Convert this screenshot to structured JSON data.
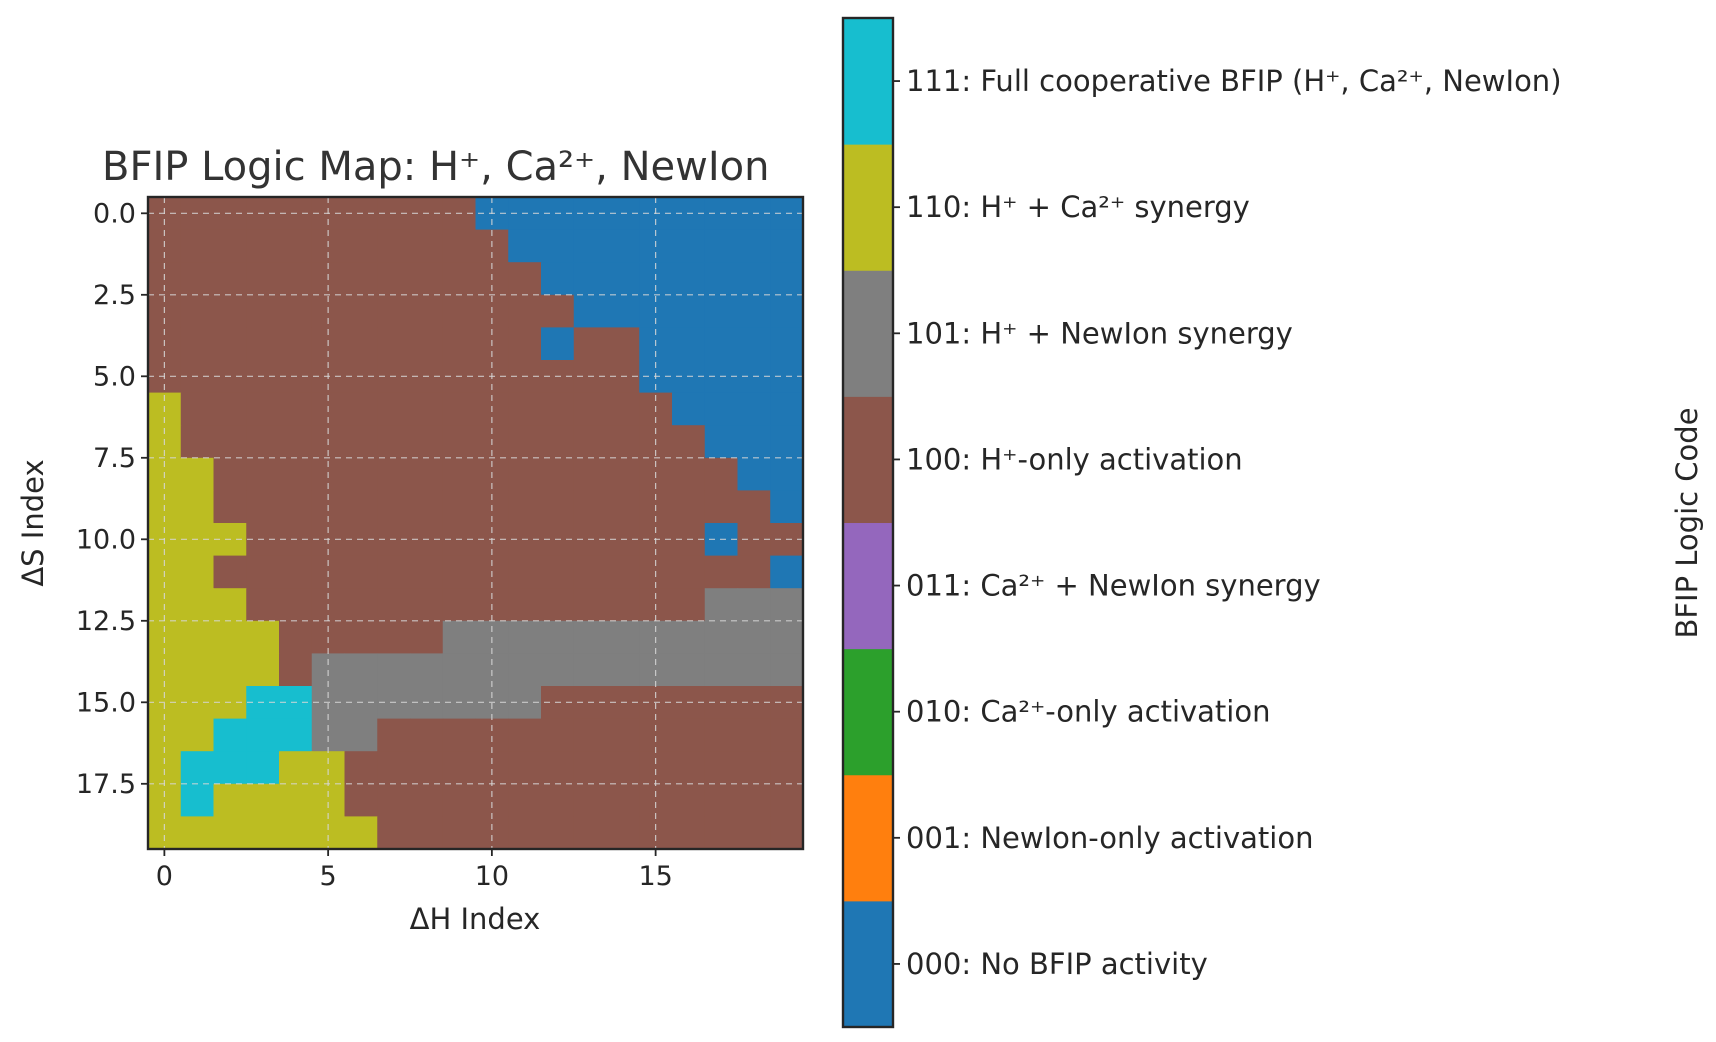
{
  "chart_data": {
    "type": "heatmap",
    "title": "BFIP Logic Map: H⁺, Ca²⁺, NewIon",
    "xlabel": "ΔH Index",
    "ylabel": "ΔS Index",
    "colorbar_label": "BFIP Logic Code",
    "x_ticks": [
      "0",
      "5",
      "10",
      "15"
    ],
    "y_ticks": [
      "0.0",
      "2.5",
      "5.0",
      "7.5",
      "10.0",
      "12.5",
      "15.0",
      "17.5"
    ],
    "grid": true,
    "codes": [
      {
        "code": "000",
        "label": "000: No BFIP activity",
        "color": "#1f77b4"
      },
      {
        "code": "001",
        "label": "001: NewIon-only activation",
        "color": "#ff7f0e"
      },
      {
        "code": "010",
        "label": "010: Ca²⁺-only activation",
        "color": "#2ca02c"
      },
      {
        "code": "011",
        "label": "011: Ca²⁺ + NewIon synergy",
        "color": "#9467bd"
      },
      {
        "code": "100",
        "label": "100: H⁺-only activation",
        "color": "#8c564b"
      },
      {
        "code": "101",
        "label": "101: H⁺ + NewIon synergy",
        "color": "#7f7f7f"
      },
      {
        "code": "110",
        "label": "110: H⁺ + Ca²⁺ synergy",
        "color": "#bcbd22"
      },
      {
        "code": "111",
        "label": "111: Full cooperative BFIP (H⁺, Ca²⁺, NewIon)",
        "color": "#17becf"
      }
    ],
    "grid_rows": [
      [
        "100",
        "100",
        "100",
        "100",
        "100",
        "100",
        "100",
        "100",
        "100",
        "100",
        "000",
        "000",
        "000",
        "000",
        "000",
        "000",
        "000",
        "000",
        "000",
        "000"
      ],
      [
        "100",
        "100",
        "100",
        "100",
        "100",
        "100",
        "100",
        "100",
        "100",
        "100",
        "100",
        "000",
        "000",
        "000",
        "000",
        "000",
        "000",
        "000",
        "000",
        "000"
      ],
      [
        "100",
        "100",
        "100",
        "100",
        "100",
        "100",
        "100",
        "100",
        "100",
        "100",
        "100",
        "100",
        "000",
        "000",
        "000",
        "000",
        "000",
        "000",
        "000",
        "000"
      ],
      [
        "100",
        "100",
        "100",
        "100",
        "100",
        "100",
        "100",
        "100",
        "100",
        "100",
        "100",
        "100",
        "100",
        "000",
        "000",
        "000",
        "000",
        "000",
        "000",
        "000"
      ],
      [
        "100",
        "100",
        "100",
        "100",
        "100",
        "100",
        "100",
        "100",
        "100",
        "100",
        "100",
        "100",
        "000",
        "100",
        "100",
        "000",
        "000",
        "000",
        "000",
        "000"
      ],
      [
        "100",
        "100",
        "100",
        "100",
        "100",
        "100",
        "100",
        "100",
        "100",
        "100",
        "100",
        "100",
        "100",
        "100",
        "100",
        "000",
        "000",
        "000",
        "000",
        "000"
      ],
      [
        "110",
        "100",
        "100",
        "100",
        "100",
        "100",
        "100",
        "100",
        "100",
        "100",
        "100",
        "100",
        "100",
        "100",
        "100",
        "100",
        "000",
        "000",
        "000",
        "000"
      ],
      [
        "110",
        "100",
        "100",
        "100",
        "100",
        "100",
        "100",
        "100",
        "100",
        "100",
        "100",
        "100",
        "100",
        "100",
        "100",
        "100",
        "100",
        "000",
        "000",
        "000"
      ],
      [
        "110",
        "110",
        "100",
        "100",
        "100",
        "100",
        "100",
        "100",
        "100",
        "100",
        "100",
        "100",
        "100",
        "100",
        "100",
        "100",
        "100",
        "100",
        "000",
        "000"
      ],
      [
        "110",
        "110",
        "100",
        "100",
        "100",
        "100",
        "100",
        "100",
        "100",
        "100",
        "100",
        "100",
        "100",
        "100",
        "100",
        "100",
        "100",
        "100",
        "100",
        "000"
      ],
      [
        "110",
        "110",
        "110",
        "100",
        "100",
        "100",
        "100",
        "100",
        "100",
        "100",
        "100",
        "100",
        "100",
        "100",
        "100",
        "100",
        "100",
        "000",
        "100",
        "100"
      ],
      [
        "110",
        "110",
        "100",
        "100",
        "100",
        "100",
        "100",
        "100",
        "100",
        "100",
        "100",
        "100",
        "100",
        "100",
        "100",
        "100",
        "100",
        "100",
        "100",
        "000"
      ],
      [
        "110",
        "110",
        "110",
        "100",
        "100",
        "100",
        "100",
        "100",
        "100",
        "100",
        "100",
        "100",
        "100",
        "100",
        "100",
        "100",
        "100",
        "101",
        "101",
        "101"
      ],
      [
        "110",
        "110",
        "110",
        "110",
        "100",
        "100",
        "100",
        "100",
        "100",
        "101",
        "101",
        "101",
        "101",
        "101",
        "101",
        "101",
        "101",
        "101",
        "101",
        "101"
      ],
      [
        "110",
        "110",
        "110",
        "110",
        "100",
        "101",
        "101",
        "101",
        "101",
        "101",
        "101",
        "101",
        "101",
        "101",
        "101",
        "101",
        "101",
        "101",
        "101",
        "101"
      ],
      [
        "110",
        "110",
        "110",
        "111",
        "111",
        "101",
        "101",
        "101",
        "101",
        "101",
        "101",
        "101",
        "100",
        "100",
        "100",
        "100",
        "100",
        "100",
        "100",
        "100"
      ],
      [
        "110",
        "110",
        "111",
        "111",
        "111",
        "101",
        "101",
        "100",
        "100",
        "100",
        "100",
        "100",
        "100",
        "100",
        "100",
        "100",
        "100",
        "100",
        "100",
        "100"
      ],
      [
        "110",
        "111",
        "111",
        "111",
        "110",
        "110",
        "100",
        "100",
        "100",
        "100",
        "100",
        "100",
        "100",
        "100",
        "100",
        "100",
        "100",
        "100",
        "100",
        "100"
      ],
      [
        "110",
        "111",
        "110",
        "110",
        "110",
        "110",
        "100",
        "100",
        "100",
        "100",
        "100",
        "100",
        "100",
        "100",
        "100",
        "100",
        "100",
        "100",
        "100",
        "100"
      ],
      [
        "110",
        "110",
        "110",
        "110",
        "110",
        "110",
        "110",
        "100",
        "100",
        "100",
        "100",
        "100",
        "100",
        "100",
        "100",
        "100",
        "100",
        "100",
        "100",
        "100"
      ]
    ]
  }
}
